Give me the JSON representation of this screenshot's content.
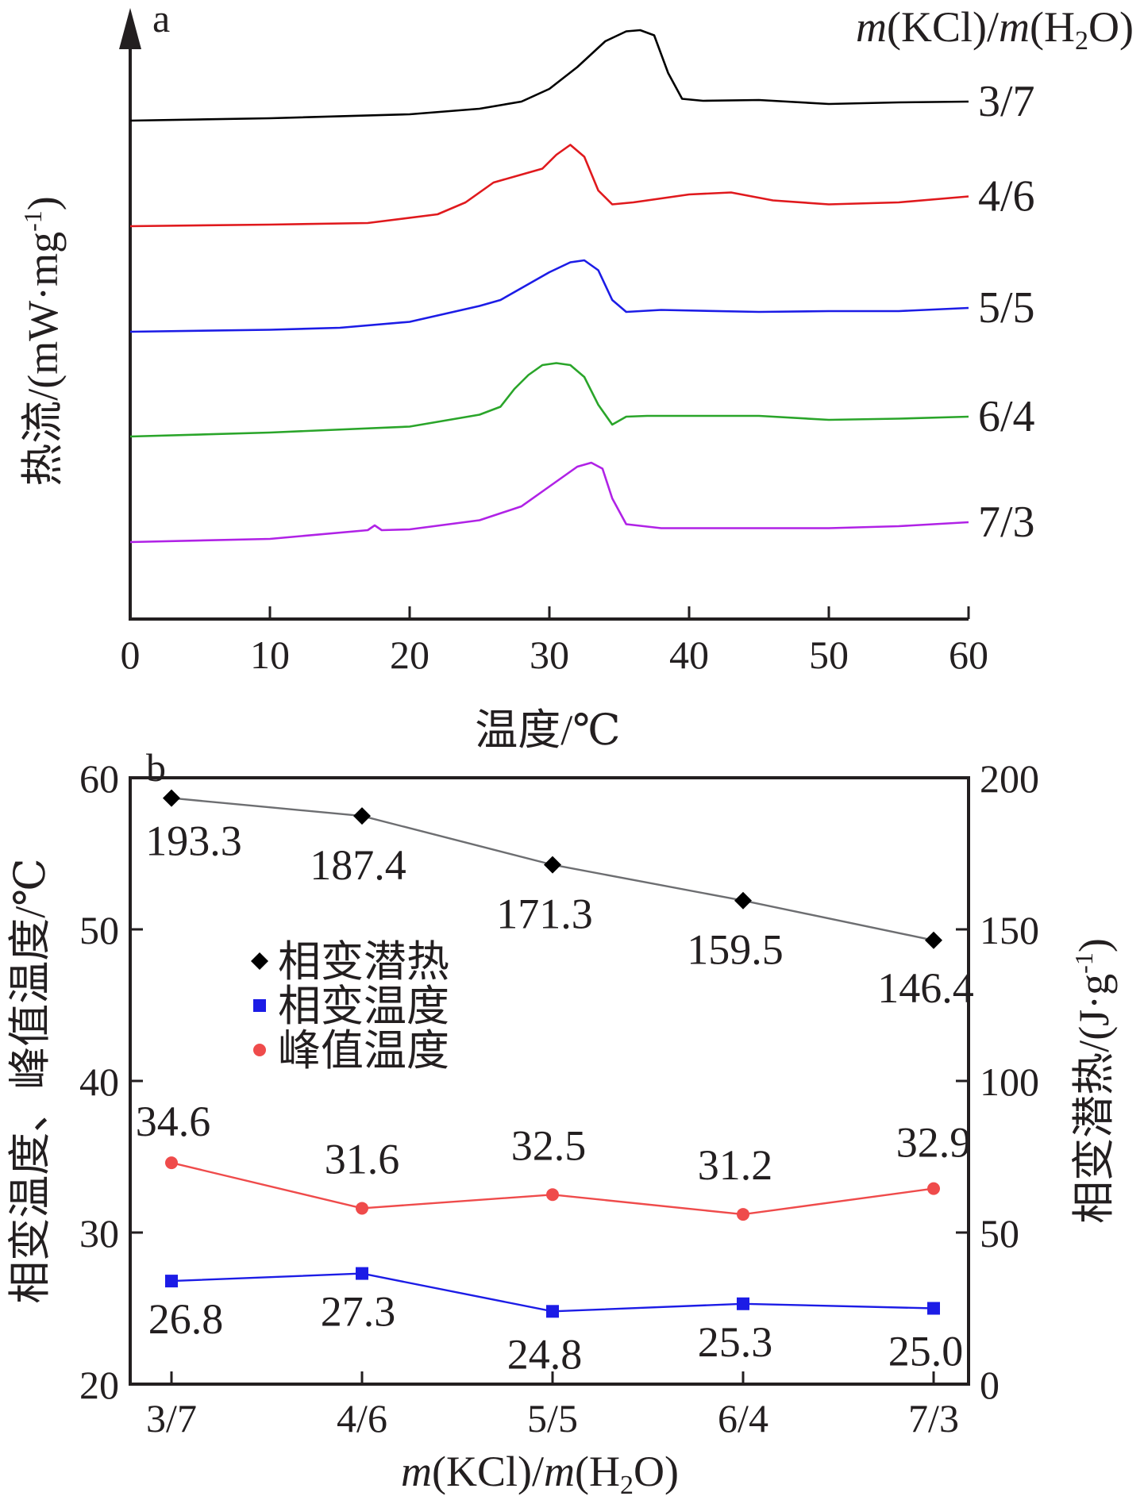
{
  "chart_data": [
    {
      "panel_label": "a",
      "type": "line",
      "xlabel": "温度/℃",
      "ylabel": "热流/(mW·mg-1)",
      "ylabel_parts": {
        "main": "热流/(mW·mg",
        "sup": "-1",
        "tail": ")"
      },
      "legend_title_parts": {
        "m1": "m",
        "a": "(KCl)/",
        "m2": "m",
        "b": "(H",
        "sub": "2",
        "c": "O)"
      },
      "legend_title": "m(KCl)/m(H2O)",
      "xlim": [
        0,
        60
      ],
      "xticks": [
        "0",
        "10",
        "20",
        "30",
        "40",
        "50",
        "60"
      ],
      "y_units": "relative heat flow (stacked, offset per curve; y axis has no numeric ticks)",
      "series": [
        {
          "name": "3/7",
          "color": "#000000",
          "x": [
            0,
            10,
            20,
            25,
            28,
            30,
            32,
            34,
            35.5,
            36.5,
            37.5,
            38.5,
            39.5,
            41,
            45,
            50,
            55,
            60
          ],
          "y": [
            0.0,
            0.06,
            0.16,
            0.3,
            0.48,
            0.8,
            1.35,
            2.0,
            2.25,
            2.28,
            2.15,
            1.2,
            0.55,
            0.5,
            0.52,
            0.42,
            0.46,
            0.48
          ]
        },
        {
          "name": "4/6",
          "color": "#e0191d",
          "x": [
            0,
            10,
            17,
            22,
            24,
            26,
            28,
            29.5,
            30.5,
            31.5,
            32.5,
            33.5,
            34.5,
            36,
            40,
            43,
            46,
            50,
            55,
            60
          ],
          "y": [
            0.0,
            0.04,
            0.08,
            0.3,
            0.6,
            1.1,
            1.3,
            1.45,
            1.8,
            2.05,
            1.75,
            0.9,
            0.55,
            0.6,
            0.8,
            0.85,
            0.65,
            0.55,
            0.6,
            0.75
          ]
        },
        {
          "name": "5/5",
          "color": "#1c1ce6",
          "x": [
            0,
            10,
            15,
            20,
            25,
            26.5,
            28,
            30,
            31.5,
            32.5,
            33.5,
            34.5,
            35.5,
            38,
            45,
            50,
            55,
            60
          ],
          "y": [
            0.0,
            0.05,
            0.1,
            0.25,
            0.65,
            0.8,
            1.1,
            1.5,
            1.75,
            1.8,
            1.55,
            0.8,
            0.5,
            0.55,
            0.5,
            0.52,
            0.52,
            0.6
          ]
        },
        {
          "name": "6/4",
          "color": "#2aa52a",
          "x": [
            0,
            10,
            20,
            25,
            26.5,
            27.5,
            28.5,
            29.5,
            30.5,
            31.5,
            32.5,
            33.5,
            34.5,
            35.5,
            37,
            45,
            50,
            55,
            60
          ],
          "y": [
            0.0,
            0.1,
            0.25,
            0.55,
            0.75,
            1.2,
            1.55,
            1.8,
            1.85,
            1.8,
            1.5,
            0.8,
            0.3,
            0.5,
            0.52,
            0.52,
            0.42,
            0.45,
            0.5
          ]
        },
        {
          "name": "7/3",
          "color": "#b022e6",
          "x": [
            0,
            10,
            17,
            17.5,
            18,
            20,
            25,
            28,
            30,
            32,
            33,
            33.8,
            34.5,
            35.5,
            38,
            45,
            50,
            55,
            60
          ],
          "y": [
            0.0,
            0.08,
            0.3,
            0.42,
            0.3,
            0.32,
            0.55,
            0.9,
            1.4,
            1.9,
            2.0,
            1.85,
            1.1,
            0.45,
            0.35,
            0.35,
            0.35,
            0.4,
            0.5
          ]
        }
      ]
    },
    {
      "panel_label": "b",
      "type": "line",
      "categories": [
        "3/7",
        "4/6",
        "5/5",
        "6/4",
        "7/3"
      ],
      "xlabel": "m(KCl)/m(H2O)",
      "xlabel_parts": {
        "m1": "m",
        "a": "(KCl)/",
        "m2": "m",
        "b": "(H",
        "sub": "2",
        "c": "O)"
      },
      "ylabel_left": "相变温度、峰值温度/℃",
      "ylabel_right": "相变潜热/(J·g-1)",
      "ylabel_right_parts": {
        "main": "相变潜热/(J·g",
        "sup": "-1",
        "tail": ")"
      },
      "ylim_left": [
        20,
        60
      ],
      "yticks_left": [
        "20",
        "30",
        "40",
        "50",
        "60"
      ],
      "ylim_right": [
        0,
        200
      ],
      "yticks_right": [
        "0",
        "50",
        "100",
        "150",
        "200"
      ],
      "legend_placement": "center-left",
      "series": [
        {
          "name": "相变潜热",
          "axis": "right",
          "marker": "diamond",
          "color": "#000000",
          "line_color": "#6d6e71",
          "values": [
            193.3,
            187.4,
            171.3,
            159.5,
            146.4
          ],
          "labels": [
            "193.3",
            "187.4",
            "171.3",
            "159.5",
            "146.4"
          ]
        },
        {
          "name": "相变温度",
          "axis": "left",
          "marker": "square",
          "color": "#1c1ce6",
          "line_color": "#1c1ce6",
          "values": [
            26.8,
            27.3,
            24.8,
            25.3,
            25.0
          ],
          "labels": [
            "26.8",
            "27.3",
            "24.8",
            "25.3",
            "25.0"
          ]
        },
        {
          "name": "峰值温度",
          "axis": "left",
          "marker": "circle",
          "color": "#ef4b4b",
          "line_color": "#ef4b4b",
          "values": [
            34.6,
            31.6,
            32.5,
            31.2,
            32.9
          ],
          "labels": [
            "34.6",
            "31.6",
            "32.5",
            "31.2",
            "32.9"
          ]
        }
      ]
    }
  ]
}
